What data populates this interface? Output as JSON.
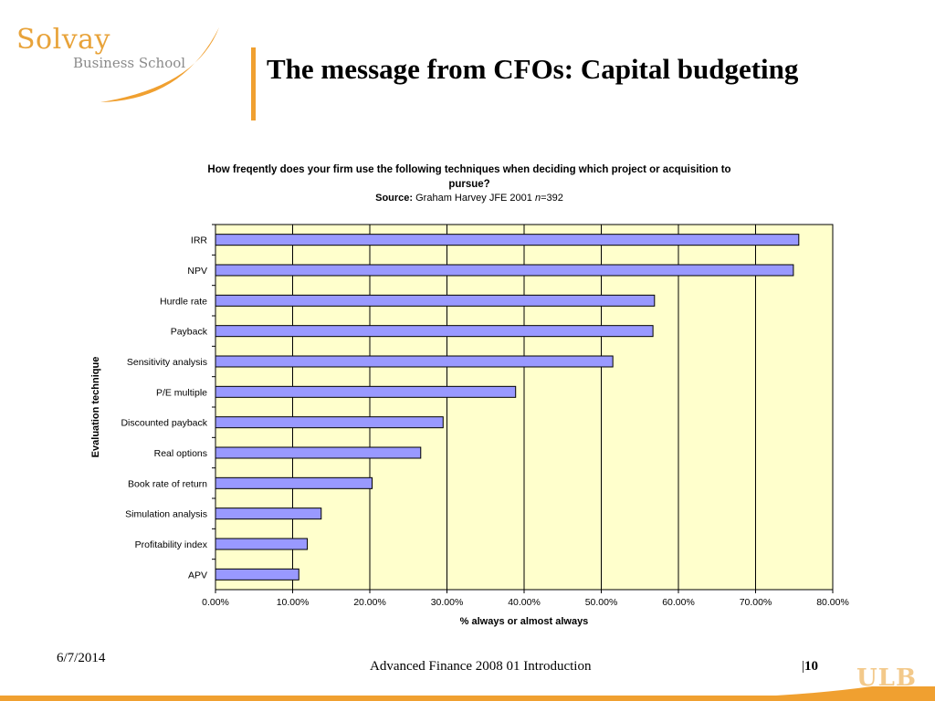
{
  "logo": {
    "name": "Solvay",
    "sub": "Business School"
  },
  "slide": {
    "title": "The message from CFOs: Capital budgeting"
  },
  "footer": {
    "date": "6/7/2014",
    "course": "Advanced Finance 2008 01 Introduction",
    "page": "10",
    "institution": "ULB"
  },
  "colors": {
    "accent": "#f0a030",
    "bar_fill": "#9999ff",
    "plot_bg": "#ffffcc"
  },
  "chart_data": {
    "type": "bar",
    "orientation": "horizontal",
    "title": "How freqently does your firm use the following techniques when deciding which project  or acquisition to pursue?",
    "source_label": "Source:",
    "source_text": "Graham Harvey JFE 2001 ",
    "source_n_var": "n",
    "source_n_value": "=392",
    "xlabel": "% always or almost always",
    "ylabel": "Evaluation technique",
    "categories": [
      "IRR",
      "NPV",
      "Hurdle rate",
      "Payback",
      "Sensitivity analysis",
      "P/E multiple",
      "Discounted payback",
      "Real options",
      "Book rate of return",
      "Simulation analysis",
      "Profitability index",
      "APV"
    ],
    "values": [
      75.6,
      74.9,
      56.9,
      56.7,
      51.5,
      38.9,
      29.5,
      26.6,
      20.3,
      13.7,
      11.9,
      10.8
    ],
    "xlim": [
      0,
      80
    ],
    "xticks": [
      "0.00%",
      "10.00%",
      "20.00%",
      "30.00%",
      "40.00%",
      "50.00%",
      "60.00%",
      "70.00%",
      "80.00%"
    ],
    "grid": "vertical",
    "legend": "none"
  }
}
